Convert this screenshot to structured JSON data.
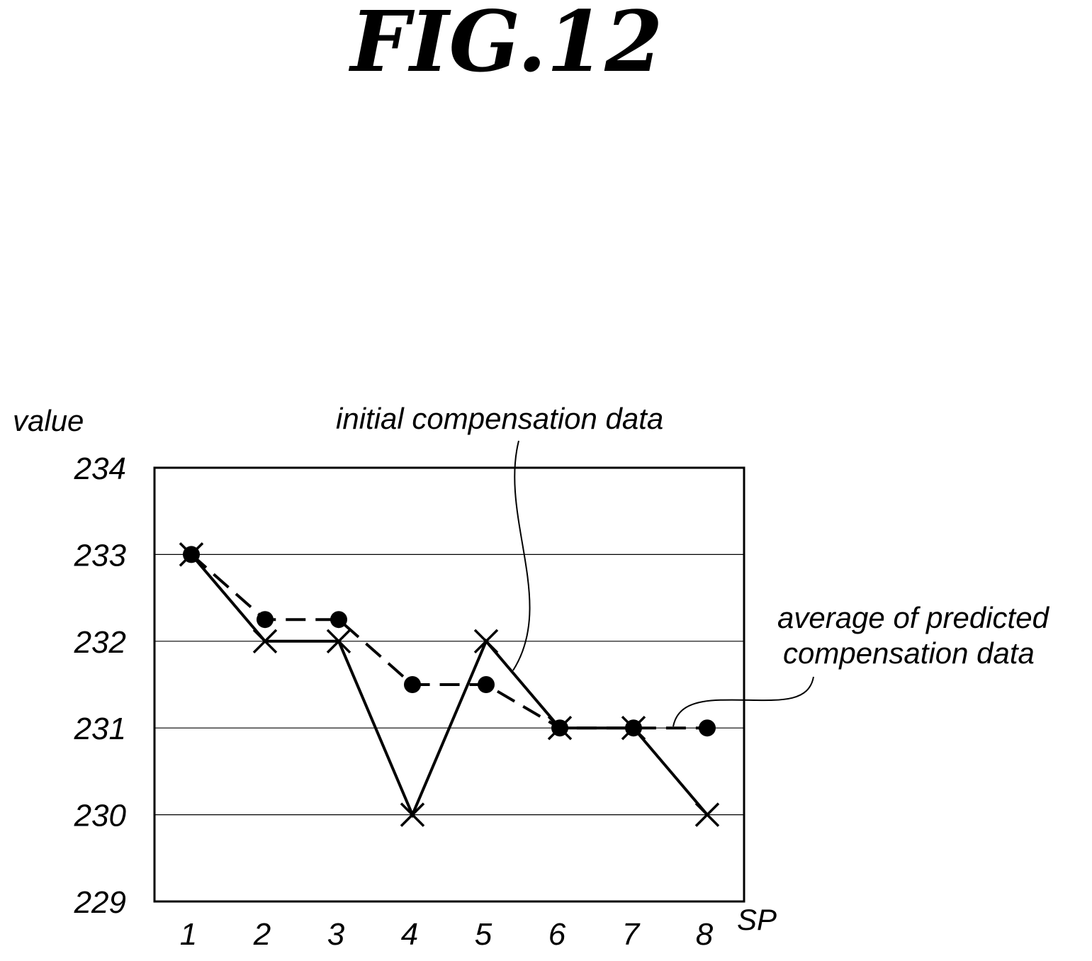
{
  "figure_title": "FIG.12",
  "chart_data": {
    "type": "line",
    "ylabel": "value",
    "xlabel": "SP",
    "ylim": [
      229,
      234
    ],
    "yticks": [
      "229",
      "230",
      "231",
      "232",
      "233",
      "234"
    ],
    "categories": [
      "1",
      "2",
      "3",
      "4",
      "5",
      "6",
      "7",
      "8"
    ],
    "grid": true,
    "series": [
      {
        "name": "initial compensation data",
        "style": "solid",
        "marker": "x",
        "color": "#000000",
        "values": [
          233,
          232,
          232,
          230,
          232,
          231,
          231,
          230
        ]
      },
      {
        "name": "average of predicted compensation data",
        "style": "dashed",
        "marker": "dot",
        "color": "#000000",
        "values": [
          233,
          232.25,
          232.25,
          231.5,
          231.5,
          231,
          231,
          231
        ]
      }
    ],
    "annotations": [
      {
        "text": "initial compensation data",
        "points_to_series": 0
      },
      {
        "text_lines": [
          "average of predicted",
          "compensation data"
        ],
        "points_to_series": 1
      }
    ]
  }
}
